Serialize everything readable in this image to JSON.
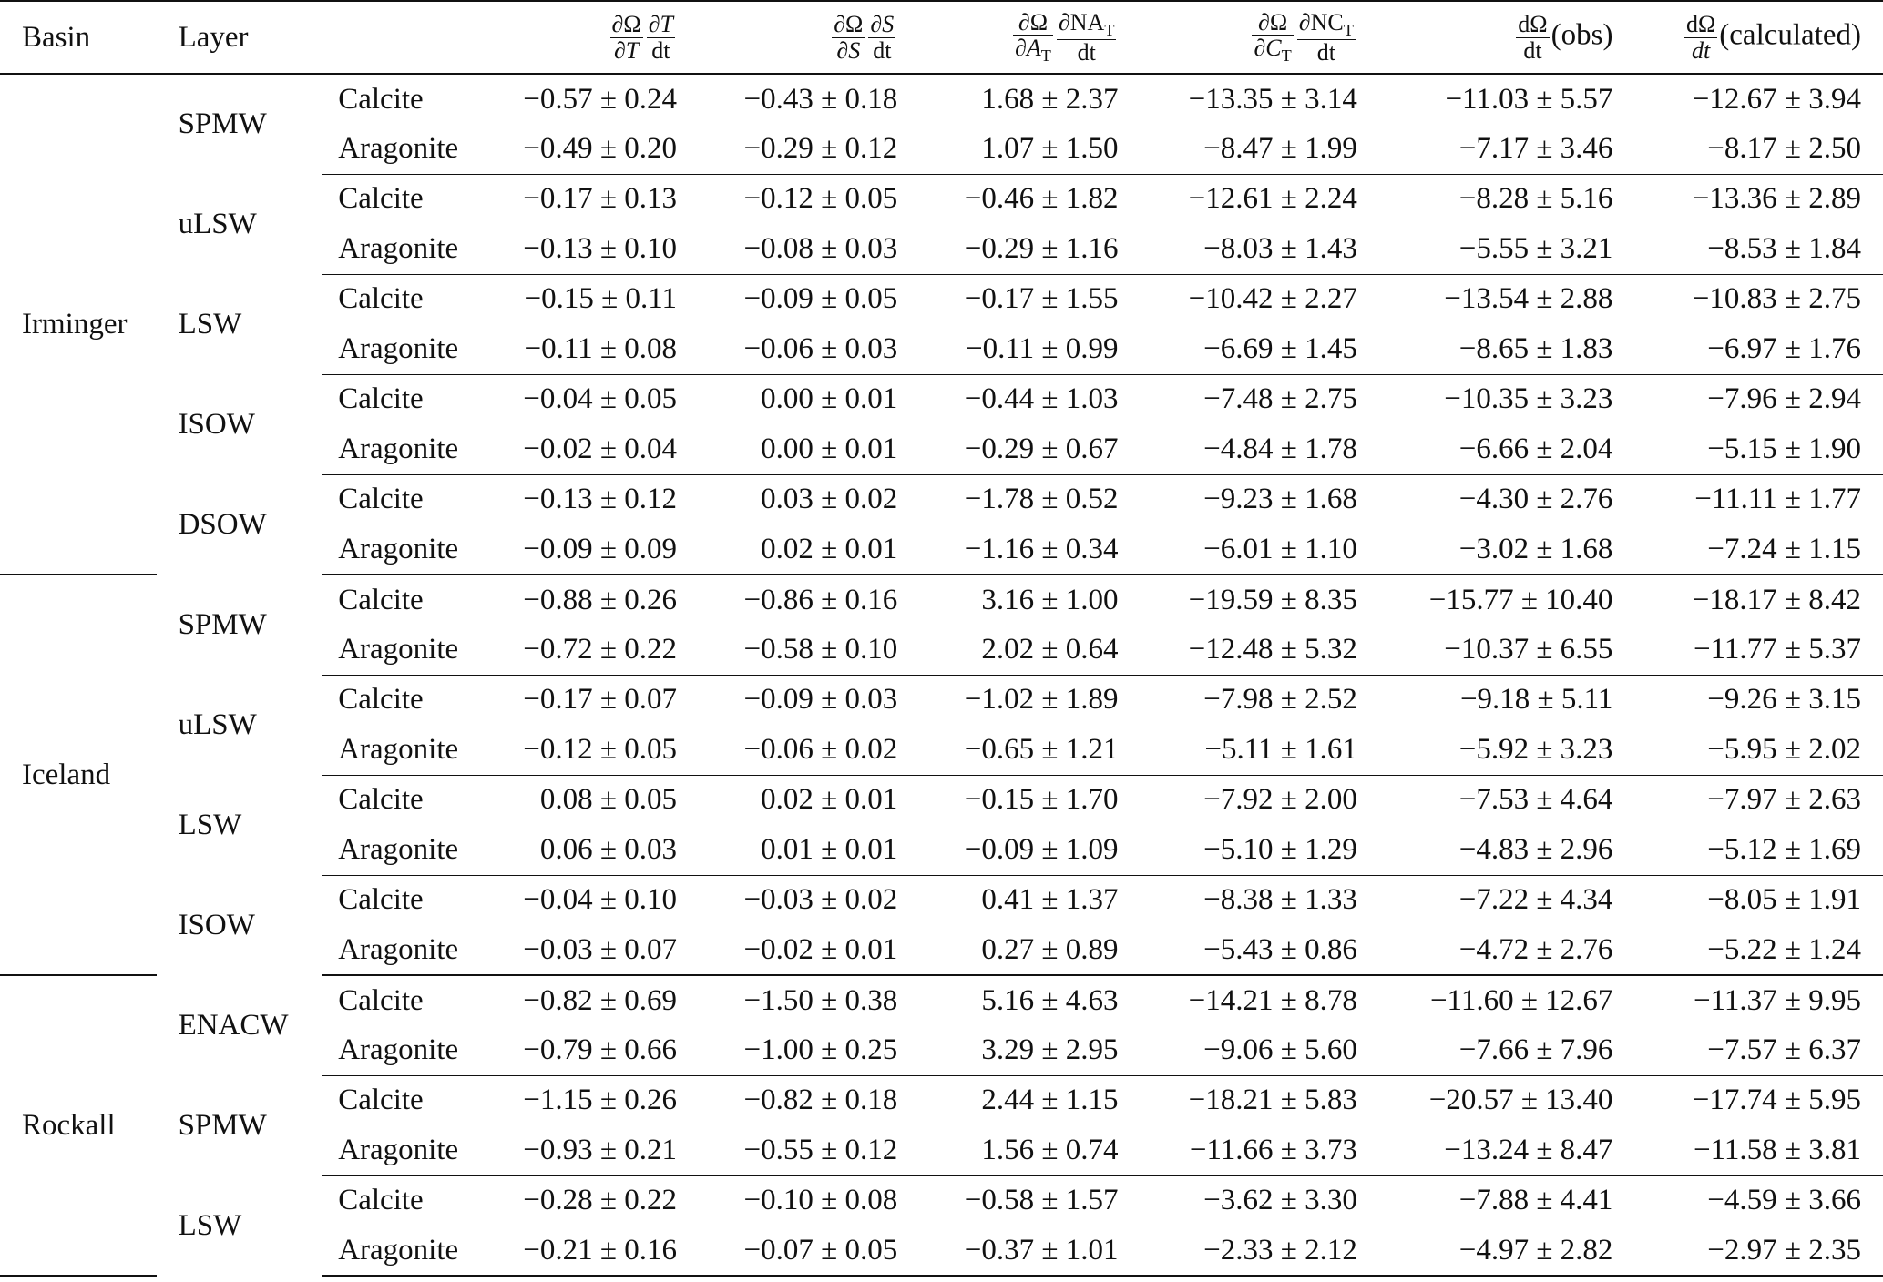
{
  "header": {
    "basin": "Basin",
    "layer": "Layer",
    "col_dt": {
      "n1": "∂Ω",
      "d1": "∂T",
      "n2": "∂T",
      "d2": "dt"
    },
    "col_ds": {
      "n1": "∂Ω",
      "d1": "∂S",
      "n2": "∂S",
      "d2": "dt"
    },
    "col_dna": {
      "n1": "∂Ω",
      "d1": "∂A",
      "d1_sub": "T",
      "n2": "∂NA",
      "n2_sub": "T",
      "d2": "dt"
    },
    "col_dnc": {
      "n1": "∂Ω",
      "d1": "∂C",
      "d1_sub": "T",
      "n2": "∂NC",
      "n2_sub": "T",
      "d2": "dt"
    },
    "col_obs": {
      "n": "dΩ",
      "d": "dt",
      "suffix": "(obs)"
    },
    "col_calc": {
      "n": "dΩ",
      "d": "dt",
      "suffix": "(calculated)"
    }
  },
  "basins": [
    {
      "name": "Irminger",
      "layers": [
        {
          "name": "SPMW",
          "rows": [
            {
              "mineral": "Calcite",
              "v": [
                "−0.57 ± 0.24",
                "−0.43 ± 0.18",
                "1.68 ± 2.37",
                "−13.35 ± 3.14",
                "−11.03 ± 5.57",
                "−12.67 ± 3.94"
              ]
            },
            {
              "mineral": "Aragonite",
              "v": [
                "−0.49 ± 0.20",
                "−0.29 ± 0.12",
                "1.07 ± 1.50",
                "−8.47 ± 1.99",
                "−7.17 ± 3.46",
                "−8.17 ± 2.50"
              ]
            }
          ]
        },
        {
          "name": "uLSW",
          "rows": [
            {
              "mineral": "Calcite",
              "v": [
                "−0.17 ± 0.13",
                "−0.12 ± 0.05",
                "−0.46 ± 1.82",
                "−12.61 ± 2.24",
                "−8.28 ± 5.16",
                "−13.36 ± 2.89"
              ]
            },
            {
              "mineral": "Aragonite",
              "v": [
                "−0.13 ± 0.10",
                "−0.08 ± 0.03",
                "−0.29 ± 1.16",
                "−8.03 ± 1.43",
                "−5.55 ± 3.21",
                "−8.53 ± 1.84"
              ]
            }
          ]
        },
        {
          "name": "LSW",
          "rows": [
            {
              "mineral": "Calcite",
              "v": [
                "−0.15 ± 0.11",
                "−0.09 ± 0.05",
                "−0.17 ± 1.55",
                "−10.42 ± 2.27",
                "−13.54 ± 2.88",
                "−10.83 ± 2.75"
              ]
            },
            {
              "mineral": "Aragonite",
              "v": [
                "−0.11 ± 0.08",
                "−0.06 ± 0.03",
                "−0.11 ± 0.99",
                "−6.69 ± 1.45",
                "−8.65 ± 1.83",
                "−6.97 ± 1.76"
              ]
            }
          ]
        },
        {
          "name": "ISOW",
          "rows": [
            {
              "mineral": "Calcite",
              "v": [
                "−0.04 ± 0.05",
                "0.00 ± 0.01",
                "−0.44 ± 1.03",
                "−7.48 ± 2.75",
                "−10.35 ± 3.23",
                "−7.96 ± 2.94"
              ]
            },
            {
              "mineral": "Aragonite",
              "v": [
                "−0.02 ± 0.04",
                "0.00 ± 0.01",
                "−0.29 ± 0.67",
                "−4.84 ± 1.78",
                "−6.66 ± 2.04",
                "−5.15 ± 1.90"
              ]
            }
          ]
        },
        {
          "name": "DSOW",
          "rows": [
            {
              "mineral": "Calcite",
              "v": [
                "−0.13 ± 0.12",
                "0.03 ± 0.02",
                "−1.78 ± 0.52",
                "−9.23 ± 1.68",
                "−4.30 ± 2.76",
                "−11.11 ± 1.77"
              ]
            },
            {
              "mineral": "Aragonite",
              "v": [
                "−0.09 ± 0.09",
                "0.02 ± 0.01",
                "−1.16 ± 0.34",
                "−6.01 ± 1.10",
                "−3.02 ± 1.68",
                "−7.24 ± 1.15"
              ]
            }
          ]
        }
      ]
    },
    {
      "name": "Iceland",
      "layers": [
        {
          "name": "SPMW",
          "rows": [
            {
              "mineral": "Calcite",
              "v": [
                "−0.88 ± 0.26",
                "−0.86 ± 0.16",
                "3.16 ± 1.00",
                "−19.59 ± 8.35",
                "−15.77 ± 10.40",
                "−18.17 ± 8.42"
              ]
            },
            {
              "mineral": "Aragonite",
              "v": [
                "−0.72 ± 0.22",
                "−0.58 ± 0.10",
                "2.02 ± 0.64",
                "−12.48 ± 5.32",
                "−10.37 ± 6.55",
                "−11.77 ± 5.37"
              ]
            }
          ]
        },
        {
          "name": "uLSW",
          "rows": [
            {
              "mineral": "Calcite",
              "v": [
                "−0.17 ± 0.07",
                "−0.09 ± 0.03",
                "−1.02 ± 1.89",
                "−7.98 ± 2.52",
                "−9.18 ± 5.11",
                "−9.26 ± 3.15"
              ]
            },
            {
              "mineral": "Aragonite",
              "v": [
                "−0.12 ± 0.05",
                "−0.06 ± 0.02",
                "−0.65 ± 1.21",
                "−5.11 ± 1.61",
                "−5.92 ± 3.23",
                "−5.95 ± 2.02"
              ]
            }
          ]
        },
        {
          "name": "LSW",
          "rows": [
            {
              "mineral": "Calcite",
              "v": [
                "0.08 ± 0.05",
                "0.02 ± 0.01",
                "−0.15 ± 1.70",
                "−7.92 ± 2.00",
                "−7.53 ± 4.64",
                "−7.97 ± 2.63"
              ]
            },
            {
              "mineral": "Aragonite",
              "v": [
                "0.06 ± 0.03",
                "0.01 ± 0.01",
                "−0.09 ± 1.09",
                "−5.10 ± 1.29",
                "−4.83 ± 2.96",
                "−5.12 ± 1.69"
              ]
            }
          ]
        },
        {
          "name": "ISOW",
          "rows": [
            {
              "mineral": "Calcite",
              "v": [
                "−0.04 ± 0.10",
                "−0.03 ± 0.02",
                "0.41 ± 1.37",
                "−8.38 ± 1.33",
                "−7.22 ± 4.34",
                "−8.05 ± 1.91"
              ]
            },
            {
              "mineral": "Aragonite",
              "v": [
                "−0.03 ± 0.07",
                "−0.02 ± 0.01",
                "0.27 ± 0.89",
                "−5.43 ± 0.86",
                "−4.72 ± 2.76",
                "−5.22 ± 1.24"
              ]
            }
          ]
        }
      ]
    },
    {
      "name": "Rockall",
      "layers": [
        {
          "name": "ENACW",
          "rows": [
            {
              "mineral": "Calcite",
              "v": [
                "−0.82 ± 0.69",
                "−1.50 ± 0.38",
                "5.16 ± 4.63",
                "−14.21 ± 8.78",
                "−11.60 ± 12.67",
                "−11.37 ± 9.95"
              ]
            },
            {
              "mineral": "Aragonite",
              "v": [
                "−0.79 ± 0.66",
                "−1.00 ± 0.25",
                "3.29 ± 2.95",
                "−9.06 ± 5.60",
                "−7.66 ± 7.96",
                "−7.57 ± 6.37"
              ]
            }
          ]
        },
        {
          "name": "SPMW",
          "rows": [
            {
              "mineral": "Calcite",
              "v": [
                "−1.15 ± 0.26",
                "−0.82 ± 0.18",
                "2.44 ± 1.15",
                "−18.21 ± 5.83",
                "−20.57 ± 13.40",
                "−17.74 ± 5.95"
              ]
            },
            {
              "mineral": "Aragonite",
              "v": [
                "−0.93 ± 0.21",
                "−0.55 ± 0.12",
                "1.56 ± 0.74",
                "−11.66 ± 3.73",
                "−13.24 ± 8.47",
                "−11.58 ± 3.81"
              ]
            }
          ]
        },
        {
          "name": "LSW",
          "rows": [
            {
              "mineral": "Calcite",
              "v": [
                "−0.28 ± 0.22",
                "−0.10 ± 0.08",
                "−0.58 ± 1.57",
                "−3.62 ± 3.30",
                "−7.88 ± 4.41",
                "−4.59 ± 3.66"
              ]
            },
            {
              "mineral": "Aragonite",
              "v": [
                "−0.21 ± 0.16",
                "−0.07 ± 0.05",
                "−0.37 ± 1.01",
                "−2.33 ± 2.12",
                "−4.97 ± 2.82",
                "−2.97 ± 2.35"
              ]
            }
          ]
        }
      ]
    }
  ]
}
